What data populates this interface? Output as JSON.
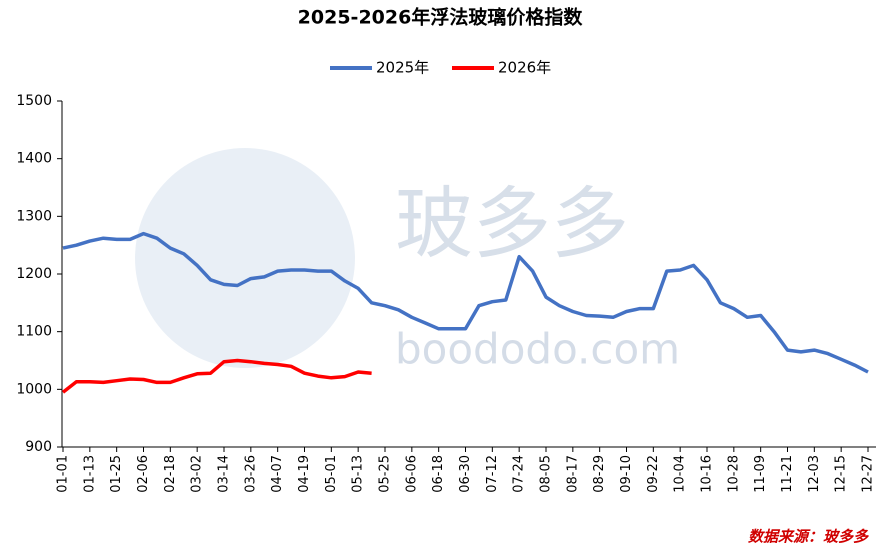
{
  "chart_data": {
    "type": "line",
    "title": "2025-2026年浮法玻璃价格指数",
    "watermark": "玻多多",
    "watermark_url": "boododo.com",
    "source": "数据来源：玻多多",
    "categories": [
      "01-01",
      null,
      "01-13",
      null,
      "01-25",
      null,
      "02-06",
      null,
      "02-18",
      null,
      "03-02",
      null,
      "03-14",
      null,
      "03-26",
      null,
      "04-07",
      null,
      "04-19",
      null,
      "05-01",
      null,
      "05-13",
      null,
      "05-25",
      null,
      "06-06",
      null,
      "06-18",
      null,
      "06-30",
      null,
      "07-12",
      null,
      "07-24",
      null,
      "08-05",
      null,
      "08-17",
      null,
      "08-29",
      null,
      "09-10",
      null,
      "09-22",
      null,
      "10-04",
      null,
      "10-16",
      null,
      "10-28",
      null,
      "11-09",
      null,
      "11-21",
      null,
      "12-03",
      null,
      "12-15",
      null,
      "12-27"
    ],
    "series": [
      {
        "name": "2025年",
        "color": "#4472c4",
        "values": [
          1245,
          1250,
          1257,
          1262,
          1260,
          1260,
          1270,
          1262,
          1245,
          1235,
          1215,
          1190,
          1182,
          1180,
          1192,
          1195,
          1205,
          1207,
          1207,
          1205,
          1205,
          1188,
          1175,
          1150,
          1145,
          1138,
          1125,
          1115,
          1105,
          1105,
          1105,
          1145,
          1152,
          1155,
          1230,
          1205,
          1160,
          1145,
          1135,
          1128,
          1127,
          1125,
          1135,
          1140,
          1140,
          1205,
          1207,
          1215,
          1190,
          1150,
          1140,
          1125,
          1128,
          1100,
          1068,
          1065,
          1068,
          1062,
          1052,
          1042,
          1030
        ]
      },
      {
        "name": "2026年",
        "color": "#ff0000",
        "values": [
          995,
          1013,
          1013,
          1012,
          1015,
          1018,
          1017,
          1012,
          1012,
          1020,
          1027,
          1028,
          1048,
          1050,
          1048,
          1045,
          1043,
          1040,
          1028,
          1023,
          1020,
          1022,
          1030,
          1028,
          null,
          null,
          null,
          null,
          null,
          null,
          null,
          null,
          null,
          null,
          null,
          null,
          null,
          null,
          null,
          null,
          null,
          null,
          null,
          null,
          null,
          null,
          null,
          null,
          null,
          null,
          null,
          null,
          null,
          null,
          null,
          null,
          null,
          null,
          null,
          null,
          null
        ]
      }
    ],
    "ylim": [
      900,
      1500
    ],
    "yticks": [
      900,
      1000,
      1100,
      1200,
      1300,
      1400,
      1500
    ],
    "legend": "top"
  }
}
